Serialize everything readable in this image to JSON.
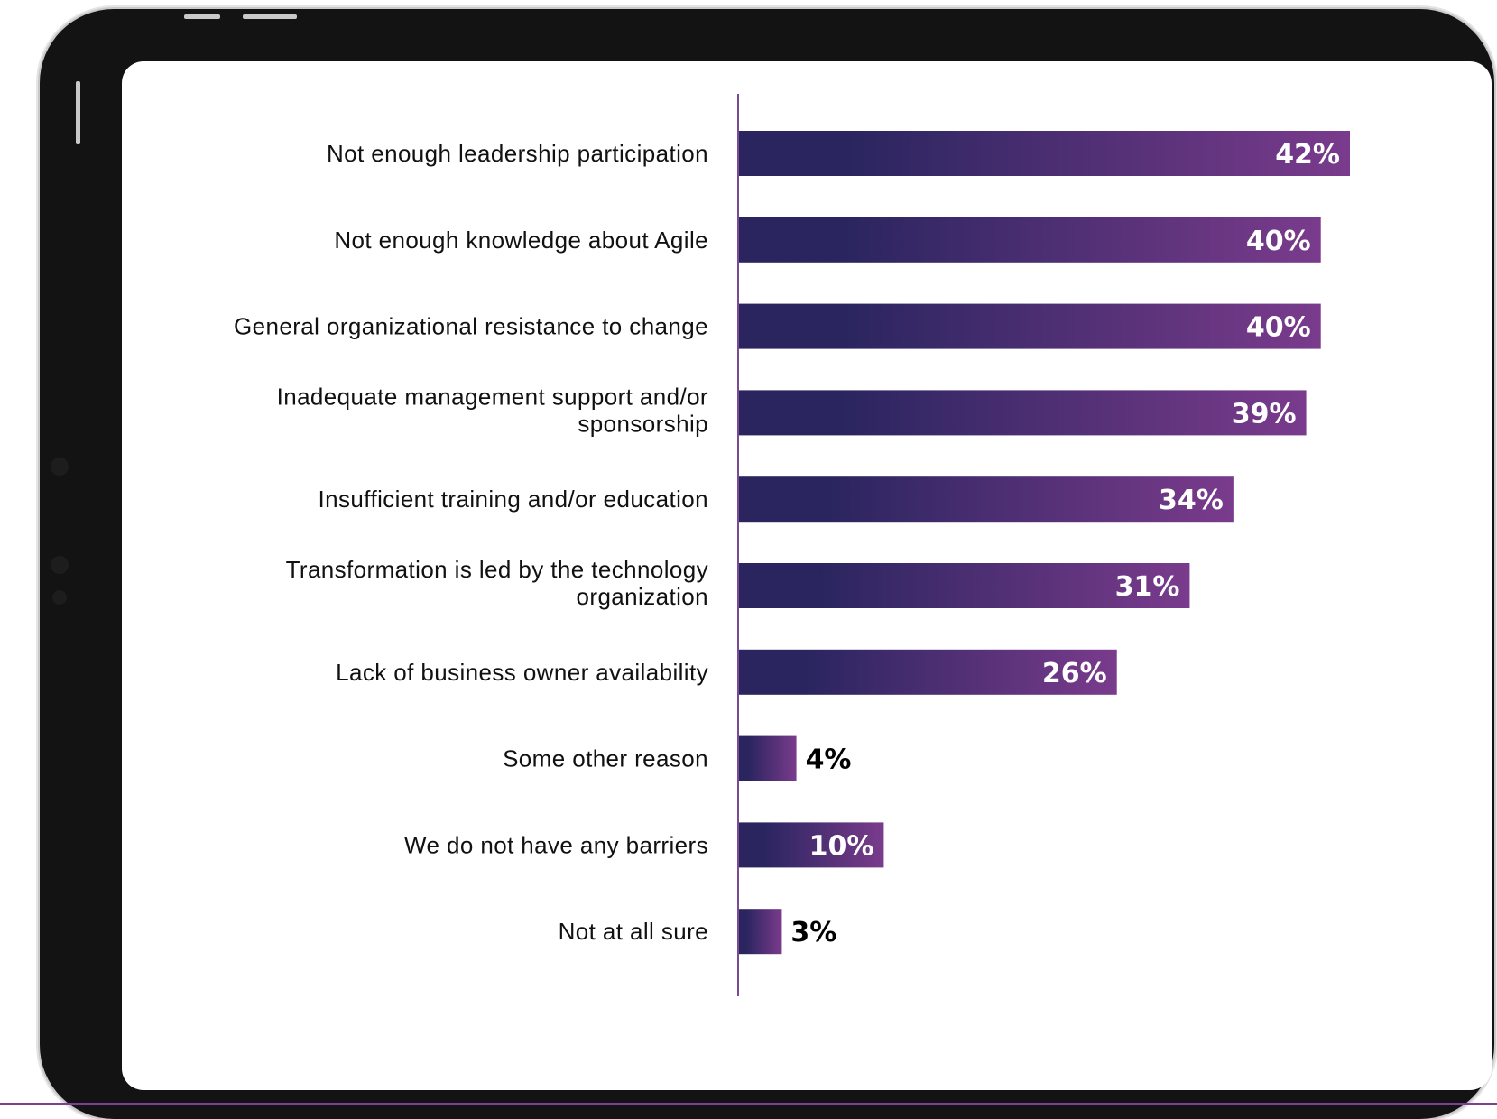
{
  "colors": {
    "bar_start": "#2a255f",
    "bar_end": "#7a3b8c",
    "axis": "#7b4a96",
    "label_inside": "#ffffff",
    "label_outside": "#000000"
  },
  "chart_data": {
    "type": "bar",
    "orientation": "horizontal",
    "categories": [
      "Not enough leadership participation",
      "Not enough knowledge about Agile",
      "General organizational resistance to change",
      "Inadequate management support and/or sponsorship",
      "Insufficient training and/or education",
      "Transformation is led by the technology organization",
      "Lack of business owner availability",
      "Some other reason",
      "We do not have any barriers",
      "Not at all sure"
    ],
    "category_lines": [
      [
        "Not enough leadership participation"
      ],
      [
        "Not enough knowledge about Agile"
      ],
      [
        "General organizational resistance to change"
      ],
      [
        "Inadequate management support and/or",
        "sponsorship"
      ],
      [
        "Insufficient training and/or education"
      ],
      [
        "Transformation is led by the technology",
        "organization"
      ],
      [
        "Lack of business owner availability"
      ],
      [
        "Some other reason"
      ],
      [
        "We do not have any barriers"
      ],
      [
        "Not at all sure"
      ]
    ],
    "values": [
      42,
      40,
      40,
      39,
      34,
      31,
      26,
      4,
      10,
      3
    ],
    "value_labels": [
      "42%",
      "40%",
      "40%",
      "39%",
      "34%",
      "31%",
      "26%",
      "4%",
      "10%",
      "3%"
    ],
    "unit": "%",
    "xlim": [
      0,
      42
    ],
    "grid": false,
    "legend": "none"
  }
}
